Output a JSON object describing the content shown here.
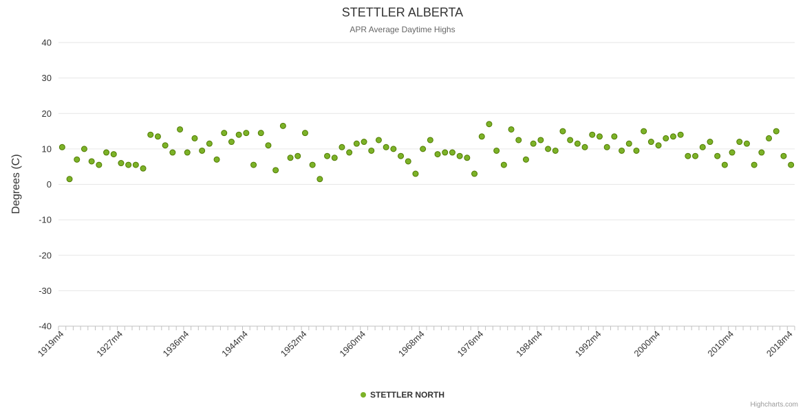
{
  "credits": {
    "label": "Highcharts.com"
  },
  "chart_data": {
    "type": "scatter",
    "title": "STETTLER ALBERTA",
    "subtitle": "APR Average Daytime Highs",
    "ylabel": "Degrees (C)",
    "xlabel": "",
    "ylim": [
      -40,
      40
    ],
    "ytick_step": 10,
    "grid": true,
    "legend_position": "bottom",
    "series_name": "STETTLER NORTH",
    "marker_color": "#7cb228",
    "marker_line_color": "#4f7a00",
    "grid_color": "#e6e6e6",
    "axis_color": "#c0c0c0",
    "label_color": "#333333",
    "x_tick_labels": [
      "1919m4",
      "1927m4",
      "1936m4",
      "1944m4",
      "1952m4",
      "1960m4",
      "1968m4",
      "1976m4",
      "1984m4",
      "1992m4",
      "2000m4",
      "2010m4",
      "2018m4"
    ],
    "categories": [
      "1919m4",
      "1920m4",
      "1921m4",
      "1922m4",
      "1923m4",
      "1924m4",
      "1925m4",
      "1926m4",
      "1927m4",
      "1928m4",
      "1929m4",
      "1930m4",
      "1931m4",
      "1932m4",
      "1933m4",
      "1934m4",
      "1935m4",
      "1936m4",
      "1937m4",
      "1938m4",
      "1939m4",
      "1940m4",
      "1941m4",
      "1942m4",
      "1943m4",
      "1944m4",
      "1945m4",
      "1946m4",
      "1947m4",
      "1948m4",
      "1949m4",
      "1950m4",
      "1951m4",
      "1952m4",
      "1953m4",
      "1954m4",
      "1955m4",
      "1956m4",
      "1957m4",
      "1958m4",
      "1959m4",
      "1960m4",
      "1961m4",
      "1962m4",
      "1963m4",
      "1964m4",
      "1965m4",
      "1966m4",
      "1967m4",
      "1968m4",
      "1969m4",
      "1970m4",
      "1971m4",
      "1972m4",
      "1973m4",
      "1974m4",
      "1975m4",
      "1976m4",
      "1977m4",
      "1978m4",
      "1979m4",
      "1980m4",
      "1981m4",
      "1982m4",
      "1983m4",
      "1984m4",
      "1985m4",
      "1986m4",
      "1987m4",
      "1988m4",
      "1989m4",
      "1990m4",
      "1991m4",
      "1992m4",
      "1993m4",
      "1994m4",
      "1995m4",
      "1996m4",
      "1997m4",
      "1998m4",
      "1999m4",
      "2000m4",
      "2001m4",
      "2002m4",
      "2003m4",
      "2004m4",
      "2005m4",
      "2006m4",
      "2007m4",
      "2008m4",
      "2009m4",
      "2010m4",
      "2011m4",
      "2012m4",
      "2013m4",
      "2014m4",
      "2015m4",
      "2016m4",
      "2017m4",
      "2018m4"
    ],
    "values": [
      10.5,
      1.5,
      7,
      10,
      6.5,
      5.5,
      9,
      8.5,
      6,
      5.5,
      5.5,
      4.5,
      14,
      13.5,
      11,
      9,
      15.5,
      9,
      13,
      9.5,
      11.5,
      7,
      14.5,
      12,
      14,
      14.5,
      5.5,
      14.5,
      11,
      4,
      16.5,
      7.5,
      8,
      14.5,
      5.5,
      1.5,
      8,
      7.5,
      10.5,
      9,
      11.5,
      12,
      9.5,
      12.5,
      10.5,
      10,
      8,
      6.5,
      3,
      10,
      12.5,
      8.5,
      9,
      9,
      8,
      7.5,
      3,
      13.5,
      17,
      9.5,
      5.5,
      15.5,
      12.5,
      7,
      11.5,
      12.5,
      10,
      9.5,
      15,
      12.5,
      11.5,
      10.5,
      14,
      13.5,
      10.5,
      13.5,
      9.5,
      11.5,
      9.5,
      15,
      12,
      11,
      13,
      13.5,
      14,
      8,
      8,
      10.5,
      12,
      8,
      5.5,
      9,
      12,
      11.5,
      5.5,
      9,
      13,
      15,
      8,
      5.5
    ]
  }
}
